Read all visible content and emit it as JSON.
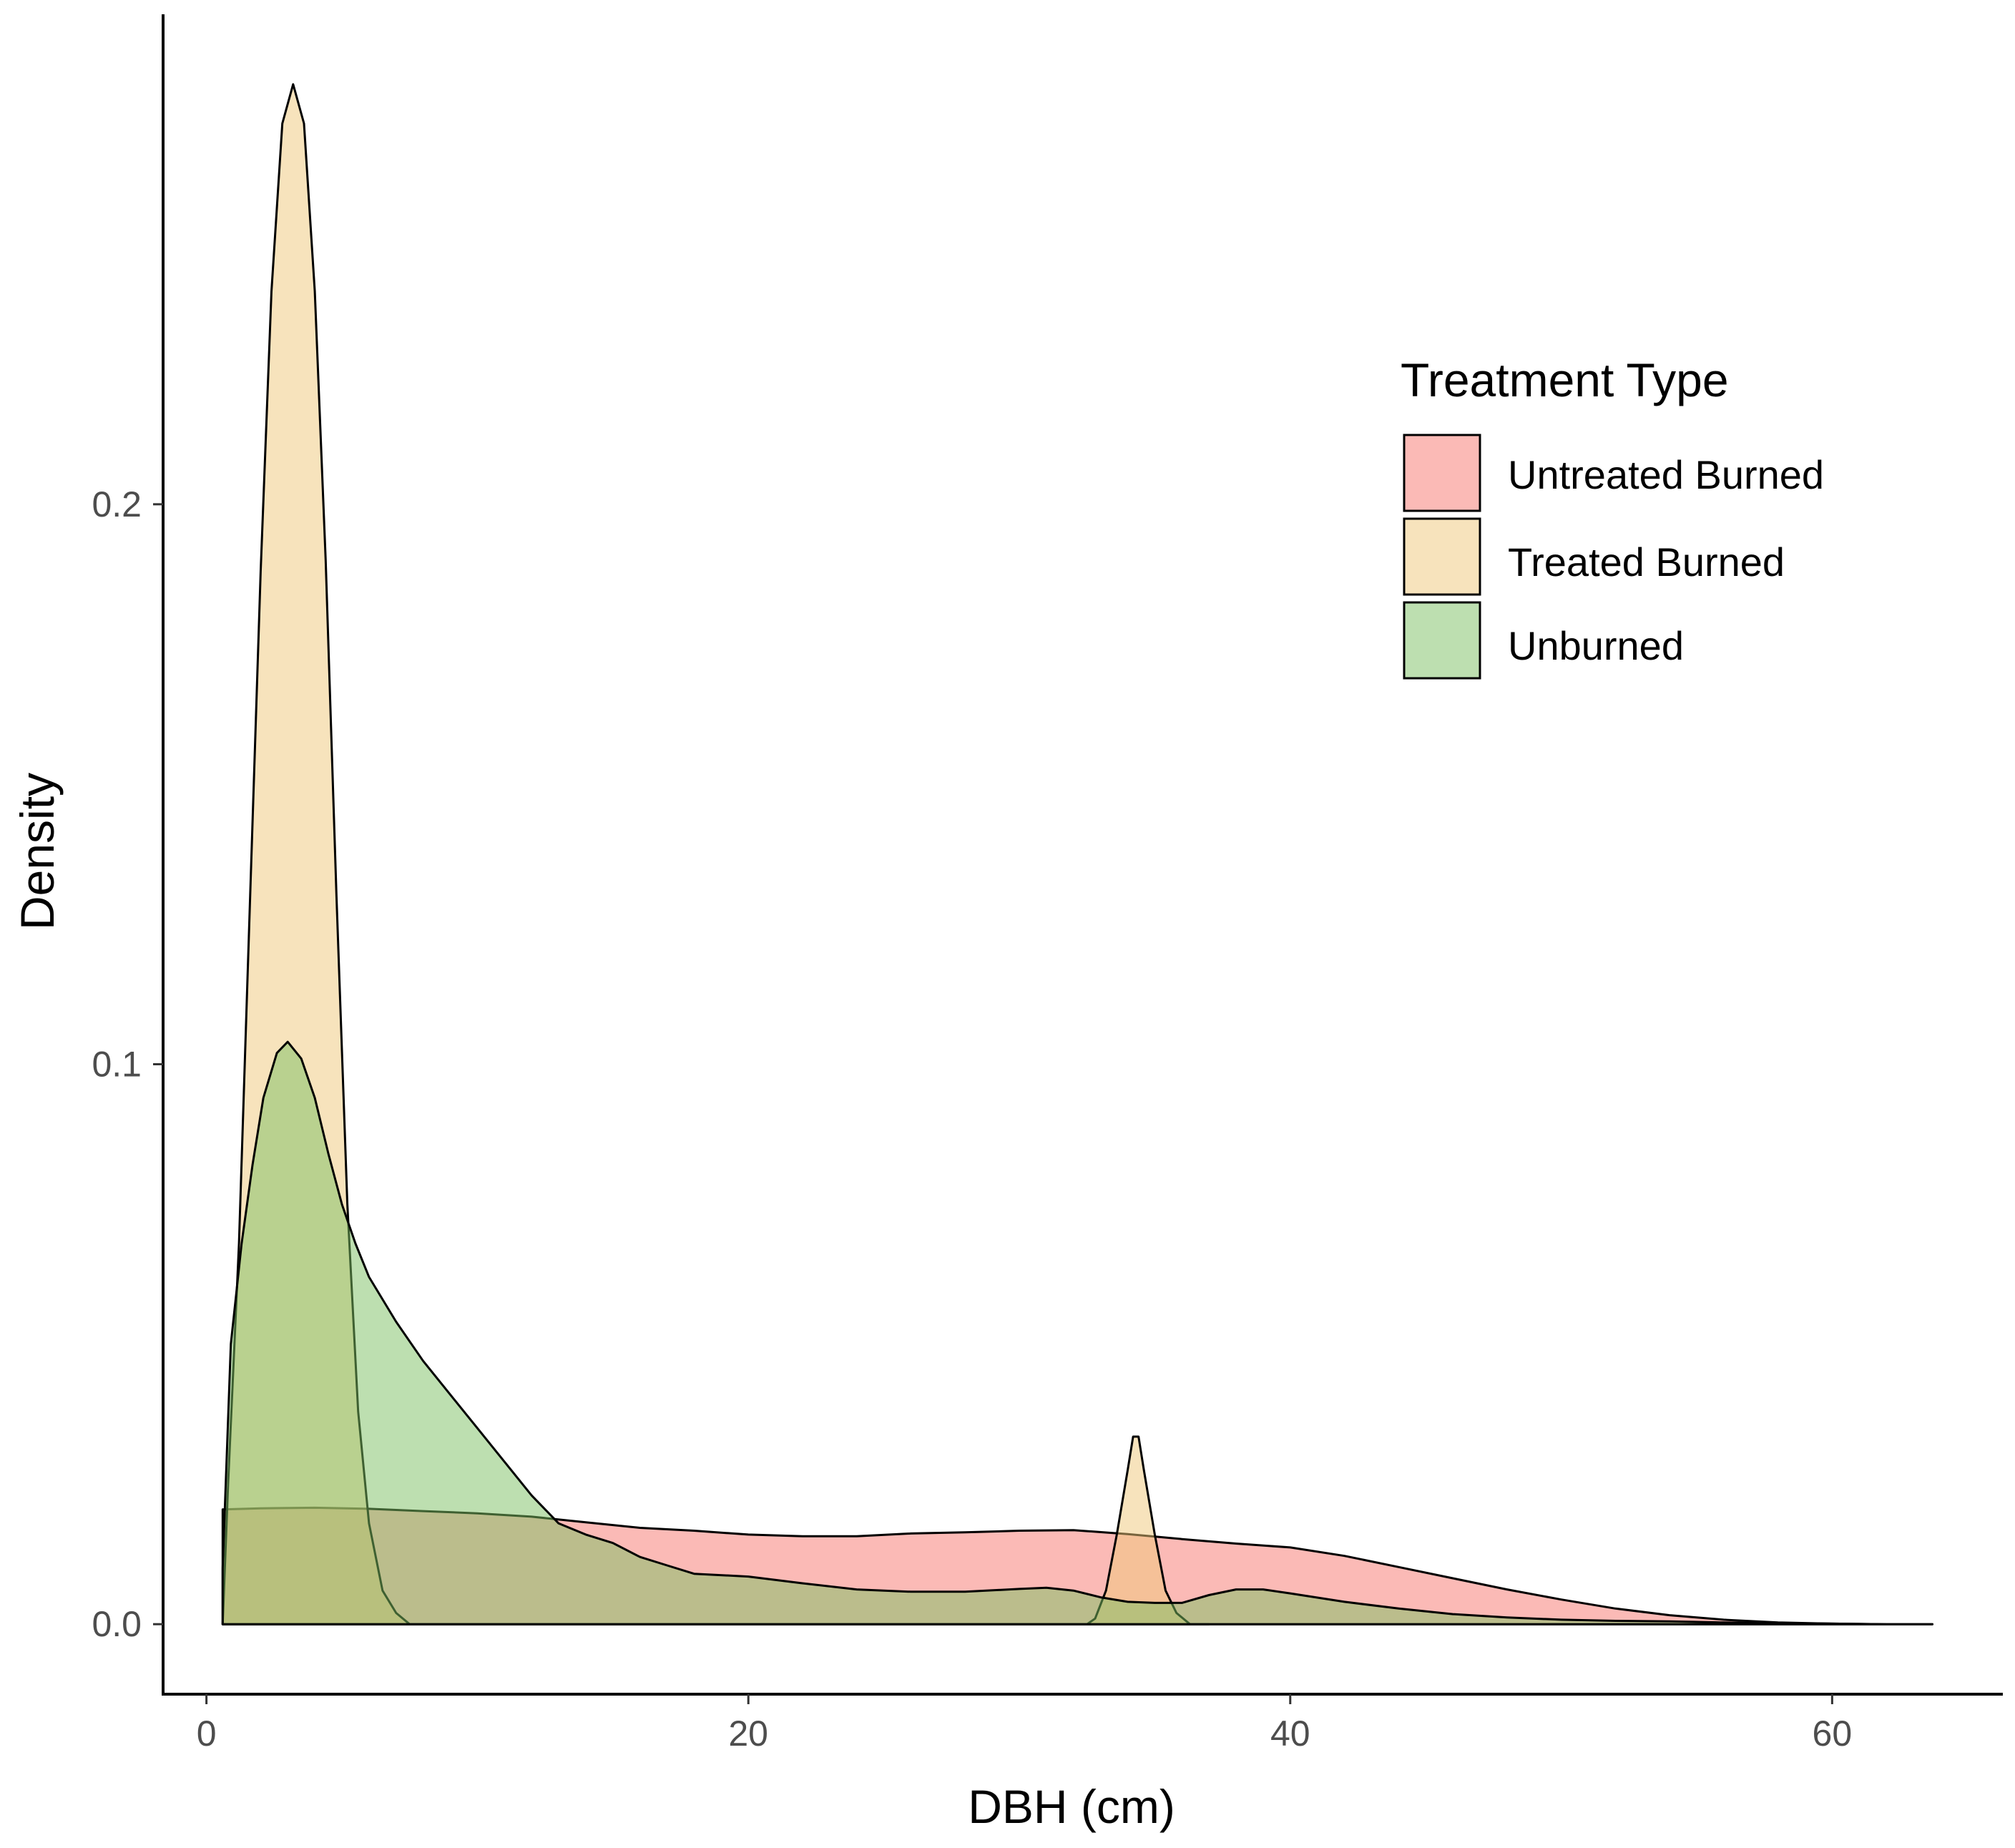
{
  "chart_data": {
    "type": "area",
    "subtype": "density",
    "title": "",
    "xlabel": "DBH (cm)",
    "ylabel": "Density",
    "xlim": [
      -1.6,
      66.3
    ],
    "ylim": [
      -0.0125,
      0.2875
    ],
    "x_ticks": [
      0,
      20,
      40,
      60
    ],
    "x_tick_labels": [
      "0",
      "20",
      "40",
      "60"
    ],
    "y_ticks": [
      0.0,
      0.1,
      0.2
    ],
    "y_tick_labels": [
      "0.0",
      "0.1",
      "0.2"
    ],
    "grid": false,
    "legend": {
      "title": "Treatment Type",
      "placement": "top-right",
      "entries": [
        {
          "label": "Untreated Burned",
          "color": "#F8766D"
        },
        {
          "label": "Treated Burned",
          "color": "#F0C77A"
        },
        {
          "label": "Unburned",
          "color": "#7CBF62"
        }
      ]
    },
    "series": [
      {
        "name": "Untreated Burned",
        "color": "#F8766D",
        "points": [
          [
            0.6,
            0
          ],
          [
            0.6,
            0.0205
          ],
          [
            2,
            0.0207
          ],
          [
            4,
            0.0208
          ],
          [
            6,
            0.0206
          ],
          [
            8,
            0.0202
          ],
          [
            10,
            0.0198
          ],
          [
            12,
            0.0192
          ],
          [
            14,
            0.0182
          ],
          [
            16,
            0.0172
          ],
          [
            18,
            0.0167
          ],
          [
            20,
            0.016
          ],
          [
            22,
            0.0157
          ],
          [
            24,
            0.0157
          ],
          [
            26,
            0.0162
          ],
          [
            28,
            0.0164
          ],
          [
            30,
            0.0167
          ],
          [
            32,
            0.0168
          ],
          [
            34,
            0.0161
          ],
          [
            36,
            0.0152
          ],
          [
            38,
            0.0144
          ],
          [
            40,
            0.0137
          ],
          [
            42,
            0.0122
          ],
          [
            44,
            0.0102
          ],
          [
            46,
            0.0082
          ],
          [
            48,
            0.0062
          ],
          [
            50,
            0.0044
          ],
          [
            52,
            0.0028
          ],
          [
            54,
            0.0016
          ],
          [
            56,
            0.0008
          ],
          [
            58,
            0.0003
          ],
          [
            60,
            0.0001
          ],
          [
            62,
            0
          ],
          [
            63.7,
            0
          ]
        ]
      },
      {
        "name": "Treated Burned",
        "color": "#F0C77A",
        "points": [
          [
            0.6,
            0
          ],
          [
            0.8,
            0.025
          ],
          [
            1.2,
            0.068
          ],
          [
            1.6,
            0.128
          ],
          [
            2,
            0.188
          ],
          [
            2.4,
            0.238
          ],
          [
            2.8,
            0.268
          ],
          [
            3.2,
            0.275
          ],
          [
            3.6,
            0.268
          ],
          [
            4,
            0.238
          ],
          [
            4.4,
            0.19
          ],
          [
            4.8,
            0.13
          ],
          [
            5.2,
            0.075
          ],
          [
            5.6,
            0.038
          ],
          [
            6,
            0.018
          ],
          [
            6.5,
            0.006
          ],
          [
            7,
            0.002
          ],
          [
            7.5,
            0
          ],
          [
            32.5,
            0
          ],
          [
            32.8,
            0.001
          ],
          [
            33.2,
            0.006
          ],
          [
            33.6,
            0.016
          ],
          [
            34,
            0.0275
          ],
          [
            34.2,
            0.0335
          ],
          [
            34.4,
            0.0335
          ],
          [
            34.6,
            0.0275
          ],
          [
            35,
            0.016
          ],
          [
            35.4,
            0.006
          ],
          [
            35.8,
            0.002
          ],
          [
            36.3,
            0
          ],
          [
            37,
            0
          ]
        ]
      },
      {
        "name": "Unburned",
        "color": "#7CBF62",
        "points": [
          [
            0.6,
            0
          ],
          [
            0.6,
            0.01
          ],
          [
            0.9,
            0.05
          ],
          [
            1.3,
            0.068
          ],
          [
            1.7,
            0.082
          ],
          [
            2.1,
            0.094
          ],
          [
            2.6,
            0.102
          ],
          [
            3,
            0.104
          ],
          [
            3.5,
            0.101
          ],
          [
            4,
            0.094
          ],
          [
            4.5,
            0.084
          ],
          [
            5,
            0.075
          ],
          [
            5.5,
            0.068
          ],
          [
            6,
            0.062
          ],
          [
            7,
            0.054
          ],
          [
            8,
            0.047
          ],
          [
            9,
            0.041
          ],
          [
            10,
            0.035
          ],
          [
            11,
            0.029
          ],
          [
            12,
            0.023
          ],
          [
            13,
            0.018
          ],
          [
            14,
            0.016
          ],
          [
            15,
            0.0145
          ],
          [
            16,
            0.012
          ],
          [
            17,
            0.0105
          ],
          [
            18,
            0.009
          ],
          [
            20,
            0.0085
          ],
          [
            22,
            0.0073
          ],
          [
            24,
            0.0062
          ],
          [
            26,
            0.0058
          ],
          [
            28,
            0.0058
          ],
          [
            30,
            0.0063
          ],
          [
            31,
            0.0065
          ],
          [
            32,
            0.006
          ],
          [
            33,
            0.0048
          ],
          [
            34,
            0.004
          ],
          [
            35,
            0.0038
          ],
          [
            36,
            0.0038
          ],
          [
            37,
            0.0052
          ],
          [
            38,
            0.0062
          ],
          [
            39,
            0.0062
          ],
          [
            40,
            0.0055
          ],
          [
            42,
            0.004
          ],
          [
            44,
            0.0028
          ],
          [
            46,
            0.0018
          ],
          [
            48,
            0.0012
          ],
          [
            50,
            0.0008
          ],
          [
            52,
            0.0006
          ],
          [
            54,
            0.0005
          ],
          [
            56,
            0.0003
          ],
          [
            58,
            0.0002
          ],
          [
            60,
            0.0001
          ],
          [
            62,
            0
          ],
          [
            63.7,
            0
          ]
        ]
      }
    ],
    "draw_order": [
      "Untreated Burned",
      "Treated Burned",
      "Unburned"
    ]
  }
}
